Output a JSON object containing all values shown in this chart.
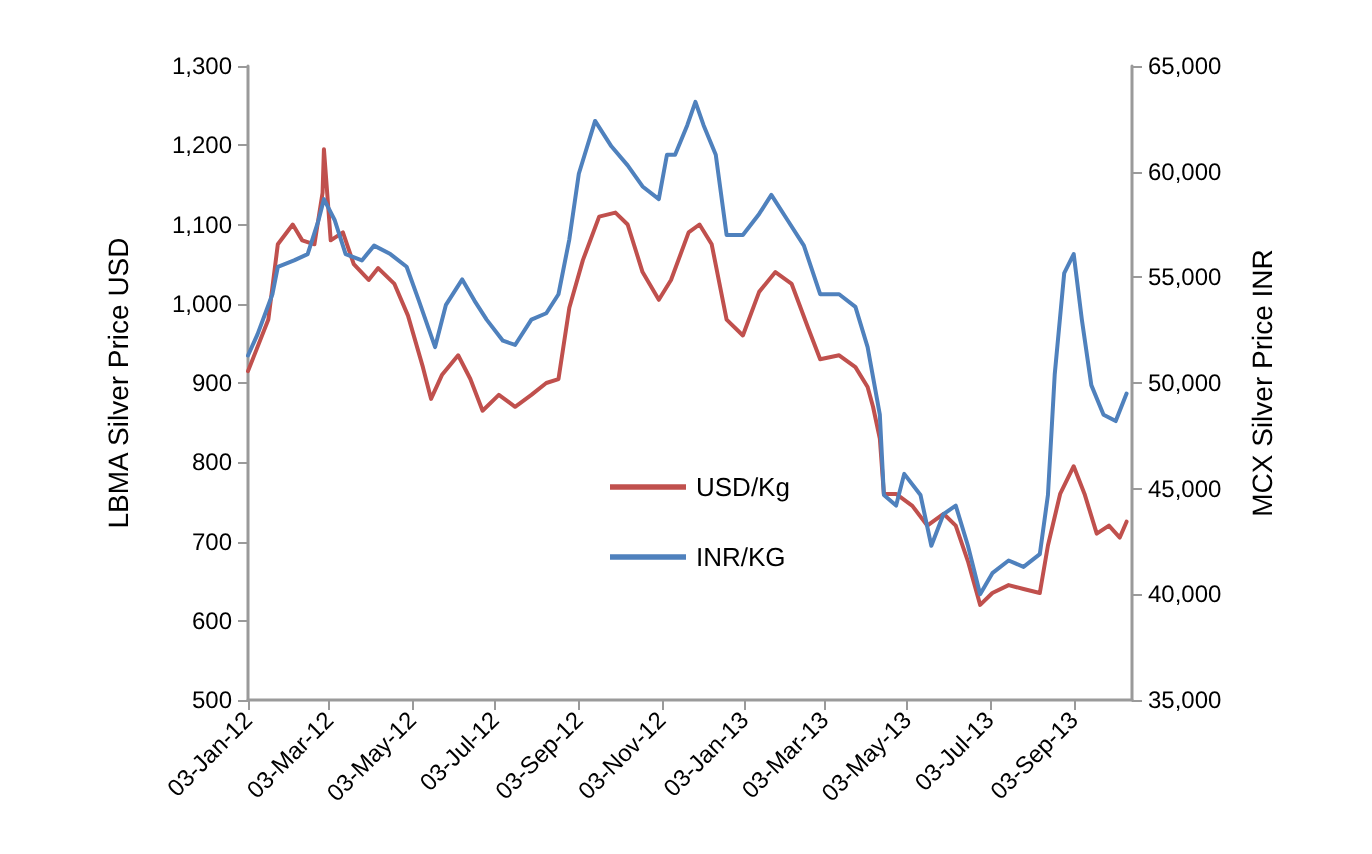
{
  "chart_data": {
    "type": "line",
    "ylabel": "LBMA Silver Price USD",
    "y2label": "MCX Silver Price INR",
    "xlim": [
      "2012-01-03",
      "2013-10-16"
    ],
    "xticks": [
      {
        "value": "2012-01-03",
        "label": "03-Jan-12"
      },
      {
        "value": "2012-03-03",
        "label": "03-Mar-12"
      },
      {
        "value": "2012-05-03",
        "label": "03-May-12"
      },
      {
        "value": "2012-07-03",
        "label": "03-Jul-12"
      },
      {
        "value": "2012-09-03",
        "label": "03-Sep-12"
      },
      {
        "value": "2012-11-03",
        "label": "03-Nov-12"
      },
      {
        "value": "2013-01-03",
        "label": "03-Jan-13"
      },
      {
        "value": "2013-03-03",
        "label": "03-Mar-13"
      },
      {
        "value": "2013-05-03",
        "label": "03-May-13"
      },
      {
        "value": "2013-07-03",
        "label": "03-Jul-13"
      },
      {
        "value": "2013-09-03",
        "label": "03-Sep-13"
      }
    ],
    "ylim": [
      500,
      1300
    ],
    "yticks": [
      500,
      600,
      700,
      800,
      900,
      {
        "value": 1000,
        "label": "1,000"
      },
      {
        "value": 1100,
        "label": "1,100"
      },
      {
        "value": 1200,
        "label": "1,200"
      },
      {
        "value": 1300,
        "label": "1,300"
      }
    ],
    "y2lim": [
      35000,
      65000
    ],
    "y2ticks": [
      {
        "value": 35000,
        "label": "35,000"
      },
      {
        "value": 40000,
        "label": "40,000"
      },
      {
        "value": 45000,
        "label": "45,000"
      },
      {
        "value": 50000,
        "label": "50,000"
      },
      {
        "value": 55000,
        "label": "55,000"
      },
      {
        "value": 60000,
        "label": "60,000"
      },
      {
        "value": 65000,
        "label": "65,000"
      }
    ],
    "grid": false,
    "legend": "center",
    "marker": "none",
    "line_style": "solid",
    "series": [
      {
        "name": "USD/Kg",
        "color": "#c0504d",
        "x": [
          "2012-01-03",
          "2012-01-18",
          "2012-01-25",
          "2012-02-05",
          "2012-02-12",
          "2012-02-21",
          "2012-02-27",
          "2012-02-28",
          "2012-03-04",
          "2012-03-13",
          "2012-03-21",
          "2012-04-01",
          "2012-04-08",
          "2012-04-20",
          "2012-04-30",
          "2012-05-11",
          "2012-05-17",
          "2012-05-25",
          "2012-06-06",
          "2012-06-15",
          "2012-06-24",
          "2012-07-06",
          "2012-07-18",
          "2012-07-30",
          "2012-08-10",
          "2012-08-19",
          "2012-08-27",
          "2012-09-06",
          "2012-09-18",
          "2012-09-30",
          "2012-10-09",
          "2012-10-20",
          "2012-11-01",
          "2012-11-10",
          "2012-11-23",
          "2012-12-01",
          "2012-12-10",
          "2012-12-21",
          "2013-01-02",
          "2013-01-14",
          "2013-01-26",
          "2013-02-07",
          "2013-02-19",
          "2013-02-28",
          "2013-03-14",
          "2013-03-26",
          "2013-04-04",
          "2013-04-08",
          "2013-04-13",
          "2013-04-16",
          "2013-04-25",
          "2013-05-07",
          "2013-05-18",
          "2013-05-30",
          "2013-06-08",
          "2013-06-17",
          "2013-06-26",
          "2013-07-05",
          "2013-07-17",
          "2013-07-28",
          "2013-08-09",
          "2013-08-15",
          "2013-08-24",
          "2013-09-03",
          "2013-09-11",
          "2013-09-20",
          "2013-09-29",
          "2013-10-07",
          "2013-10-12"
        ],
        "values": [
          915,
          980,
          1075,
          1100,
          1080,
          1075,
          1140,
          1195,
          1080,
          1090,
          1050,
          1030,
          1045,
          1025,
          985,
          920,
          880,
          910,
          935,
          905,
          865,
          885,
          870,
          885,
          900,
          905,
          995,
          1055,
          1110,
          1115,
          1100,
          1040,
          1005,
          1030,
          1090,
          1100,
          1075,
          980,
          960,
          1015,
          1040,
          1025,
          970,
          930,
          935,
          920,
          895,
          870,
          830,
          760,
          760,
          745,
          720,
          735,
          720,
          675,
          620,
          635,
          645,
          640,
          635,
          695,
          760,
          795,
          760,
          710,
          720,
          705,
          725
        ]
      },
      {
        "name": "INR/KG",
        "color": "#4f81bd",
        "axis": "y2",
        "x": [
          "2012-01-03",
          "2012-01-10",
          "2012-01-21",
          "2012-01-25",
          "2012-02-06",
          "2012-02-16",
          "2012-02-24",
          "2012-02-28",
          "2012-03-07",
          "2012-03-15",
          "2012-03-27",
          "2012-04-05",
          "2012-04-17",
          "2012-04-29",
          "2012-05-08",
          "2012-05-20",
          "2012-05-28",
          "2012-06-09",
          "2012-06-18",
          "2012-06-27",
          "2012-07-09",
          "2012-07-18",
          "2012-07-30",
          "2012-08-10",
          "2012-08-19",
          "2012-08-27",
          "2012-09-03",
          "2012-09-15",
          "2012-09-27",
          "2012-10-09",
          "2012-10-20",
          "2012-11-01",
          "2012-11-07",
          "2012-11-13",
          "2012-11-22",
          "2012-11-28",
          "2012-12-04",
          "2012-12-13",
          "2012-12-21",
          "2013-01-02",
          "2013-01-14",
          "2013-01-23",
          "2013-02-04",
          "2013-02-16",
          "2013-02-28",
          "2013-03-14",
          "2013-03-26",
          "2013-04-04",
          "2013-04-13",
          "2013-04-16",
          "2013-04-25",
          "2013-05-01",
          "2013-05-13",
          "2013-05-21",
          "2013-05-30",
          "2013-06-08",
          "2013-06-17",
          "2013-06-26",
          "2013-07-05",
          "2013-07-17",
          "2013-07-28",
          "2013-08-09",
          "2013-08-15",
          "2013-08-20",
          "2013-08-27",
          "2013-09-03",
          "2013-09-09",
          "2013-09-16",
          "2013-09-25",
          "2013-10-04",
          "2013-10-12"
        ],
        "values": [
          51300,
          52300,
          54200,
          55500,
          55800,
          56100,
          57700,
          58700,
          57700,
          56100,
          55800,
          56500,
          56100,
          55500,
          53900,
          51700,
          53700,
          54900,
          53900,
          53000,
          52000,
          51800,
          53000,
          53300,
          54200,
          56800,
          59900,
          62400,
          61200,
          60300,
          59300,
          58700,
          60800,
          60800,
          62200,
          63300,
          62200,
          60800,
          57000,
          57000,
          58000,
          58900,
          57700,
          56500,
          54200,
          54200,
          53600,
          51700,
          48500,
          44700,
          44200,
          45700,
          44700,
          42300,
          43800,
          44200,
          42300,
          40000,
          41000,
          41600,
          41300,
          41900,
          44700,
          50400,
          55200,
          56100,
          53000,
          49900,
          48500,
          48200,
          49500
        ]
      }
    ]
  }
}
